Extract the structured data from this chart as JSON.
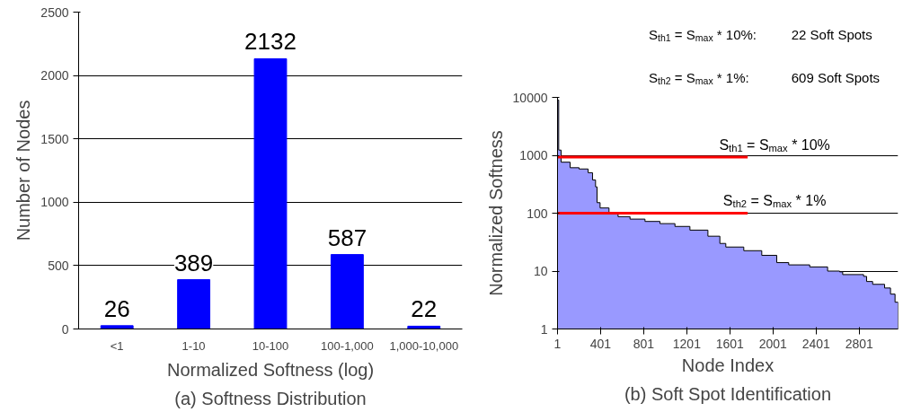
{
  "chart_data": [
    {
      "type": "bar",
      "title": "(a) Softness Distribution",
      "xlabel": "Normalized Softness (log)",
      "ylabel": "Number of Nodes",
      "categories": [
        "<1",
        "1-10",
        "10-100",
        "100-1,000",
        "1,000-10,000"
      ],
      "values": [
        26,
        389,
        2132,
        587,
        22
      ],
      "color": "#0000ff",
      "data_labels": true,
      "ylim": [
        0,
        2500
      ],
      "yticks": [
        0,
        500,
        1000,
        1500,
        2000,
        2500
      ],
      "grid": "y"
    },
    {
      "type": "area",
      "title": "(b) Soft Spot Identification",
      "xlabel": "Node Index",
      "ylabel": "Normalized Softness",
      "log": "y",
      "xlim": [
        1,
        3162
      ],
      "xticks": [
        1,
        401,
        801,
        1201,
        1601,
        2001,
        2401,
        2801
      ],
      "ylim": [
        1,
        10000
      ],
      "yticks": [
        1,
        10,
        100,
        1000,
        10000
      ],
      "grid": "y",
      "series": [
        {
          "type": "area",
          "color": "#9999ff",
          "x": [
            1,
            12,
            34,
            118,
            201,
            285,
            326,
            354,
            368,
            396,
            479,
            563,
            674,
            813,
            952,
            1091,
            1230,
            1397,
            1508,
            1563,
            1730,
            1897,
            2036,
            2147,
            2342,
            2508,
            2620,
            2648,
            2842,
            2870,
            2926,
            3037,
            3092,
            3134,
            3162
          ],
          "values": [
            9000,
            1230,
            760,
            610,
            580,
            500,
            375,
            285,
            152,
            123,
            100,
            87,
            79,
            72,
            66,
            59,
            51,
            40,
            30,
            26,
            22.5,
            18.7,
            14,
            12.8,
            11.8,
            10,
            9.7,
            8.7,
            8.1,
            6.6,
            5.9,
            5.1,
            4.0,
            2.9,
            2.9
          ]
        },
        {
          "type": "line",
          "color": "#ff0000",
          "name": "S$_{th1}$ = S$_{max}$ * 10%",
          "x": [
            1,
            1766
          ],
          "values": [
            930,
            930
          ]
        },
        {
          "type": "line",
          "color": "#ff0000",
          "name": "S$_{th2}$ = S$_{max}$ * 1%",
          "x": [
            1,
            1766
          ],
          "values": [
            100,
            100
          ]
        }
      ],
      "annotations": [
        "S$_{th1}$ = S$_{max}$ * 10%:",
        "22 Soft Spots",
        "S$_{th2}$ = S$_{max}$ * 1%:",
        "609 Soft Spots"
      ]
    }
  ]
}
